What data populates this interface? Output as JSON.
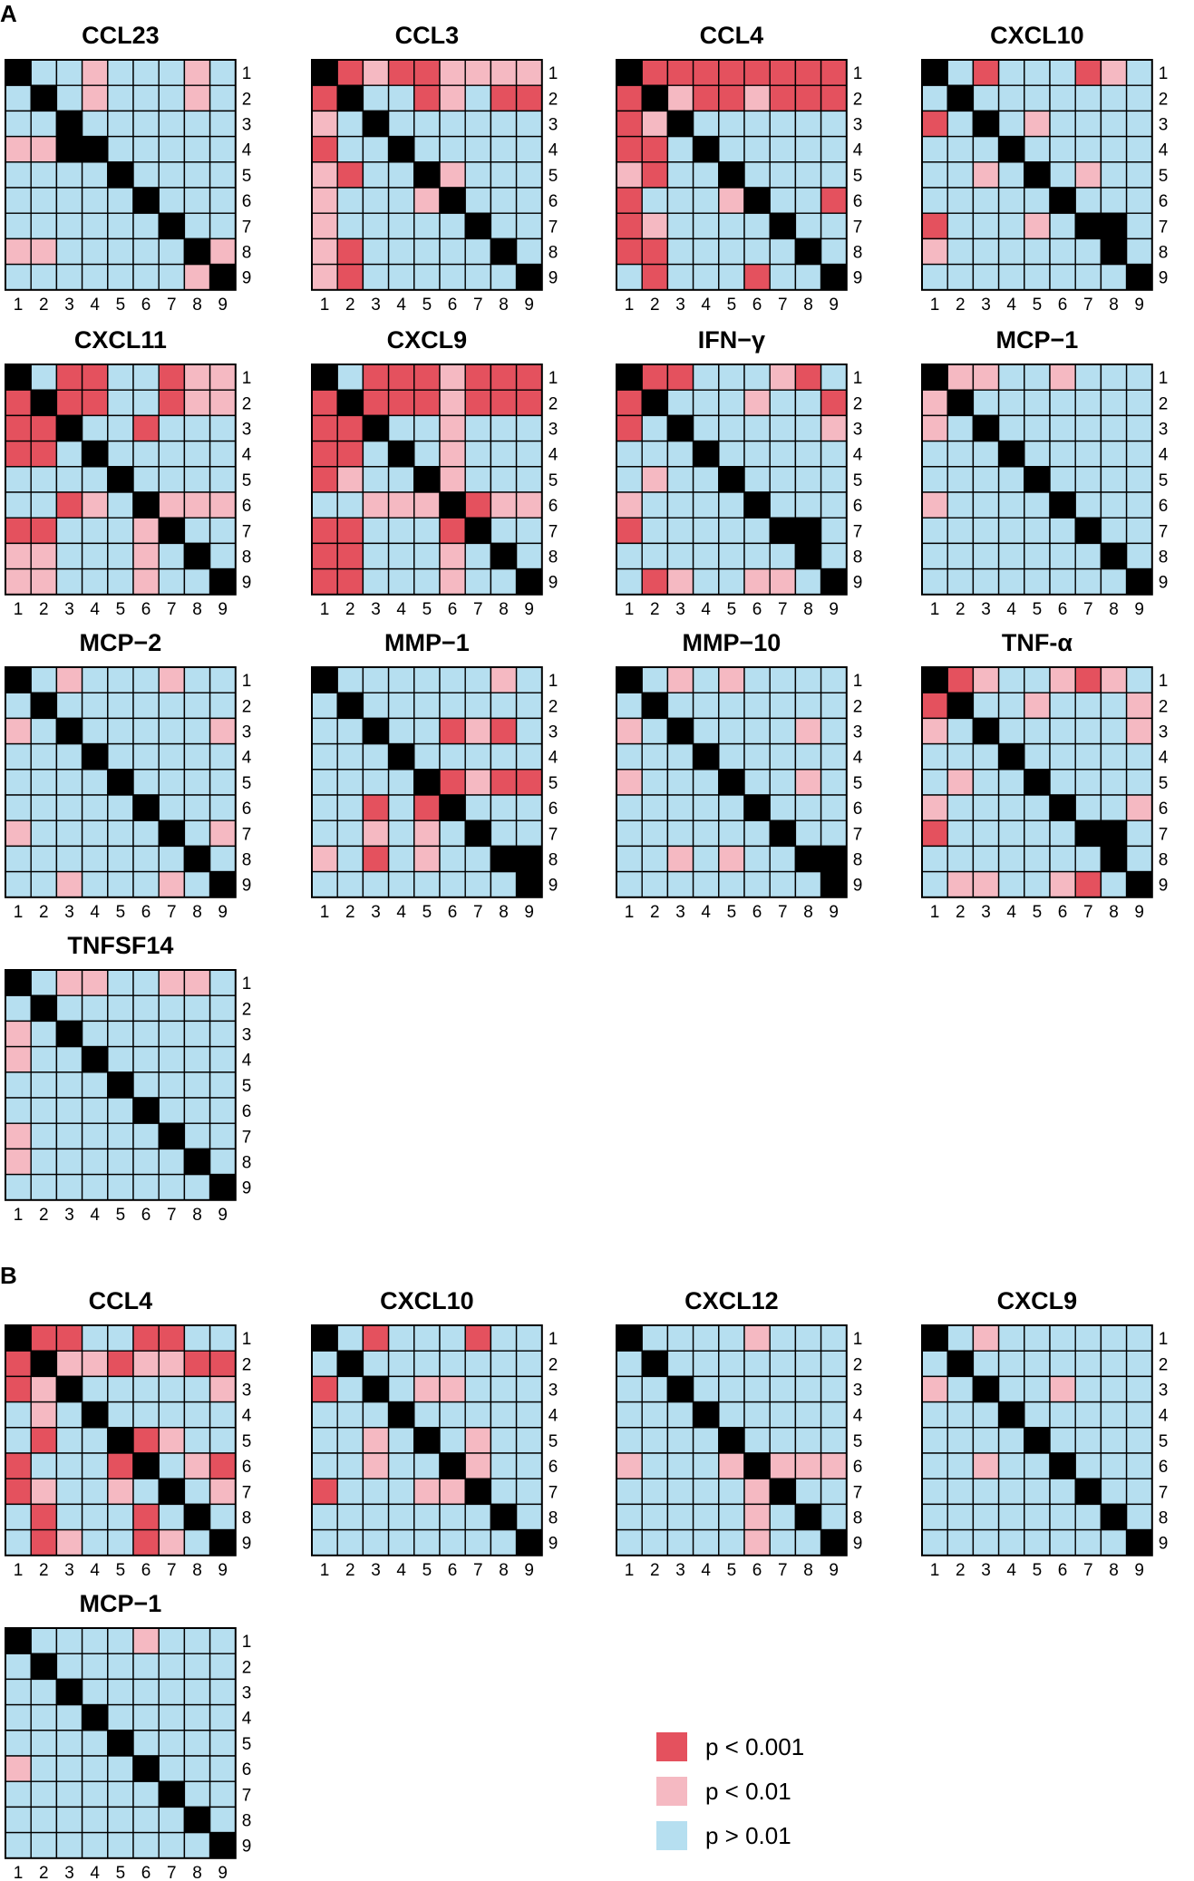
{
  "panels": [
    {
      "letter": "A",
      "charts": [
        {
          "title": "CCL23",
          "matrix": "000110010000000000000000000110000000000000000000000000000000000000000000110000000000000000110000001"
        },
        {
          "title": "CCL3"
        },
        {
          "title": "CCL4"
        },
        {
          "title": "CXCL10"
        },
        {
          "title": "CXCL11"
        },
        {
          "title": "CXCL9"
        },
        {
          "title": "IFN−γ"
        },
        {
          "title": "MCP−1"
        },
        {
          "title": "MCP−2"
        },
        {
          "title": "MMP−1"
        },
        {
          "title": "MMP−10"
        },
        {
          "title": "TNF-α"
        },
        {
          "title": "TNFSF14"
        }
      ]
    },
    {
      "letter": "B",
      "charts": [
        {
          "title": "CCL4"
        },
        {
          "title": "CXCL10"
        },
        {
          "title": "CXCL12"
        },
        {
          "title": "CXCL9"
        },
        {
          "title": "MCP−1"
        }
      ]
    }
  ],
  "chart_data": [
    {
      "type": "heatmap",
      "panel": "A",
      "title": "CCL23",
      "rows": [
        1,
        2,
        3,
        4,
        5,
        6,
        7,
        8,
        9
      ],
      "cols": [
        1,
        2,
        3,
        4,
        5,
        6,
        7,
        8,
        9
      ],
      "cells": [
        "D00100010",
        "0D0100010",
        "00D000000",
        "11D000000",
        "0000D0000",
        "00000D000",
        "000000D00",
        "1100000D1",
        "0000000 1D"
      ]
    },
    {
      "type": "heatmap",
      "panel": "A",
      "title": "CCL3",
      "rows": [
        1,
        2,
        3,
        4,
        5,
        6,
        7,
        8,
        9
      ],
      "cols": [
        1,
        2,
        3,
        4,
        5,
        6,
        7,
        8,
        9
      ],
      "cells": [
        "D21221111",
        "2D0021022",
        "1 0D000000",
        "20 0D0000",
        "1200D1000",
        "10001D000",
        "100000D00",
        "1200000D0",
        "12000000D"
      ]
    },
    {
      "type": "heatmap",
      "panel": "A",
      "title": "CCL4",
      "rows": [
        1,
        2,
        3,
        4,
        5,
        6,
        7,
        8,
        9
      ],
      "cols": [
        1,
        2,
        3,
        4,
        5,
        6,
        7,
        8,
        9
      ],
      "cells": [
        "D22222222",
        "2D1221222",
        "21D000000",
        "220D00000",
        "1200D0000",
        "20001D002",
        "210000D00",
        "2200000D0",
        "020002000D"
      ]
    },
    {
      "type": "heatmap",
      "panel": "A",
      "title": "CXCL10",
      "rows": [
        1,
        2,
        3,
        4,
        5,
        6,
        7,
        8,
        9
      ],
      "cols": [
        1,
        2,
        3,
        4,
        5,
        6,
        7,
        8,
        9
      ],
      "cells": [
        "D0200021 0",
        "0D0000000",
        "20D010000",
        "000D00000",
        "0010D0100",
        "00000D000",
        "2000100D00",
        "1000000D0",
        "00000000D"
      ]
    },
    {
      "type": "heatmap",
      "panel": "A",
      "title": "CXCL11",
      "rows": [
        1,
        2,
        3,
        4,
        5,
        6,
        7,
        8,
        9
      ],
      "cols": [
        1,
        2,
        3,
        4,
        5,
        6,
        7,
        8,
        9
      ],
      "cells": [
        "D02200211",
        "2D2200211",
        "22D002000",
        "220D00000",
        "0000D0000",
        "00210D111",
        "220001D00",
        "1100010D0",
        "11000100D"
      ]
    },
    {
      "type": "heatmap",
      "panel": "A",
      "title": "CXCL9",
      "rows": [
        1,
        2,
        3,
        4,
        5,
        6,
        7,
        8,
        9
      ],
      "cols": [
        1,
        2,
        3,
        4,
        5,
        6,
        7,
        8,
        9
      ],
      "cells": [
        "D02221222",
        "2D2221222",
        "22D001000",
        "220D01000",
        "2100D1000",
        "00111D211",
        "220002D00",
        "2200010D0",
        "22000100D"
      ]
    },
    {
      "type": "heatmap",
      "panel": "A",
      "title": "IFN−γ",
      "rows": [
        1,
        2,
        3,
        4,
        5,
        6,
        7,
        8,
        9
      ],
      "cols": [
        1,
        2,
        3,
        4,
        5,
        6,
        7,
        8,
        9
      ],
      "cells": [
        "D22000120",
        "2D0001002",
        "20D000001",
        "000D00000",
        "0100D0000",
        "10000D000",
        "2000000D01",
        "0000000D0",
        "02100110D"
      ]
    },
    {
      "type": "heatmap",
      "panel": "A",
      "title": "MCP−1",
      "rows": [
        1,
        2,
        3,
        4,
        5,
        6,
        7,
        8,
        9
      ],
      "cols": [
        1,
        2,
        3,
        4,
        5,
        6,
        7,
        8,
        9
      ],
      "cells": [
        "D11001000",
        "1D0000000",
        "10D000000",
        "000D00000",
        "0000D0000",
        "10000D000",
        "000000D00",
        "0000000D0",
        "00000000D"
      ]
    },
    {
      "type": "heatmap",
      "panel": "A",
      "title": "MCP−2",
      "rows": [
        1,
        2,
        3,
        4,
        5,
        6,
        7,
        8,
        9
      ],
      "cols": [
        1,
        2,
        3,
        4,
        5,
        6,
        7,
        8,
        9
      ],
      "cells": [
        "D01000100",
        "0D0000000",
        "10D000001",
        "000D00000",
        "0000D0000",
        "00000D000",
        "100000D01",
        "0000000D0",
        "00100010D"
      ]
    },
    {
      "type": "heatmap",
      "panel": "A",
      "title": "MMP−1",
      "rows": [
        1,
        2,
        3,
        4,
        5,
        6,
        7,
        8,
        9
      ],
      "cols": [
        1,
        2,
        3,
        4,
        5,
        6,
        7,
        8,
        9
      ],
      "cells": [
        "D00000010",
        "0D0000000",
        "00D002120",
        "000D00000",
        "0000D2122",
        "00202D000",
        "001010D00",
        "10201000D0",
        "00000000D"
      ]
    },
    {
      "type": "heatmap",
      "panel": "A",
      "title": "MMP−10",
      "rows": [
        1,
        2,
        3,
        4,
        5,
        6,
        7,
        8,
        9
      ],
      "cols": [
        1,
        2,
        3,
        4,
        5,
        6,
        7,
        8,
        9
      ],
      "cells": [
        "D01010000",
        "0D0000000",
        "10D000010",
        "000D00000",
        "1000D0010",
        "00000D000",
        "000000D00",
        "00101000D0",
        "00000000D"
      ]
    },
    {
      "type": "heatmap",
      "panel": "A",
      "title": "TNF-α",
      "rows": [
        1,
        2,
        3,
        4,
        5,
        6,
        7,
        8,
        9
      ],
      "cols": [
        1,
        2,
        3,
        4,
        5,
        6,
        7,
        8,
        9
      ],
      "cells": [
        "D21001210",
        "2D0010001",
        "10D000001",
        "000D00000",
        "0100D0000",
        "10000D001",
        "2000000D02",
        "0000000D0",
        "011001200D"
      ]
    },
    {
      "type": "heatmap",
      "panel": "A",
      "title": "TNFSF14",
      "rows": [
        1,
        2,
        3,
        4,
        5,
        6,
        7,
        8,
        9
      ],
      "cols": [
        1,
        2,
        3,
        4,
        5,
        6,
        7,
        8,
        9
      ],
      "cells": [
        "D01100110",
        "0D0000000",
        "10D000000",
        "100D00000",
        "0000D0000",
        "00000D000",
        "100000D00",
        "1000000D0",
        "00000000D"
      ]
    },
    {
      "type": "heatmap",
      "panel": "B",
      "title": "CCL4",
      "rows": [
        1,
        2,
        3,
        4,
        5,
        6,
        7,
        8,
        9
      ],
      "cols": [
        1,
        2,
        3,
        4,
        5,
        6,
        7,
        8,
        9
      ],
      "cells": [
        "D22002200",
        "2D1121122",
        "21D000001",
        "010D00000",
        "0200D2100",
        "20002D012",
        "210010D01",
        "0200020D0",
        "02100210D"
      ]
    },
    {
      "type": "heatmap",
      "panel": "B",
      "title": "CXCL10",
      "rows": [
        1,
        2,
        3,
        4,
        5,
        6,
        7,
        8,
        9
      ],
      "cols": [
        1,
        2,
        3,
        4,
        5,
        6,
        7,
        8,
        9
      ],
      "cells": [
        "D02000200",
        "0D0000000",
        "20D011000",
        "000D00000",
        "0010D0100",
        "00100D100",
        "200011D00",
        "0000000D0",
        "00000000D"
      ]
    },
    {
      "type": "heatmap",
      "panel": "B",
      "title": "CXCL12",
      "rows": [
        1,
        2,
        3,
        4,
        5,
        6,
        7,
        8,
        9
      ],
      "cols": [
        1,
        2,
        3,
        4,
        5,
        6,
        7,
        8,
        9
      ],
      "cells": [
        "D00001000",
        "0D0000000",
        "00D000000",
        "000D00000",
        "0000D0000",
        "10001D111",
        "00000 1D00",
        "000001 0D0",
        "00000100D"
      ]
    },
    {
      "type": "heatmap",
      "panel": "B",
      "title": "CXCL9",
      "rows": [
        1,
        2,
        3,
        4,
        5,
        6,
        7,
        8,
        9
      ],
      "cols": [
        1,
        2,
        3,
        4,
        5,
        6,
        7,
        8,
        9
      ],
      "cells": [
        "D01000000",
        "0D0000000",
        "10D001000",
        "000D00000",
        "0000D0000",
        "00100D000",
        "000000D00",
        "0000000D0",
        "00000000D"
      ]
    },
    {
      "type": "heatmap",
      "panel": "B",
      "title": "MCP−1",
      "rows": [
        1,
        2,
        3,
        4,
        5,
        6,
        7,
        8,
        9
      ],
      "cols": [
        1,
        2,
        3,
        4,
        5,
        6,
        7,
        8,
        9
      ],
      "cells": [
        "D00001000",
        "0D0000000",
        "00D000000",
        "000D00000",
        "0000D0000",
        "10000D000",
        "000000D00",
        "0000000D0",
        "00000000D"
      ]
    }
  ],
  "legend": {
    "items": [
      {
        "label": "p < 0.001",
        "color": "#e4515e"
      },
      {
        "label": "p < 0.01",
        "color": "#f5b9c2"
      },
      {
        "label": "p > 0.01",
        "color": "#b6dff0"
      }
    ]
  },
  "colors": {
    "diagonal": "#000000",
    "grid": "#000000"
  }
}
